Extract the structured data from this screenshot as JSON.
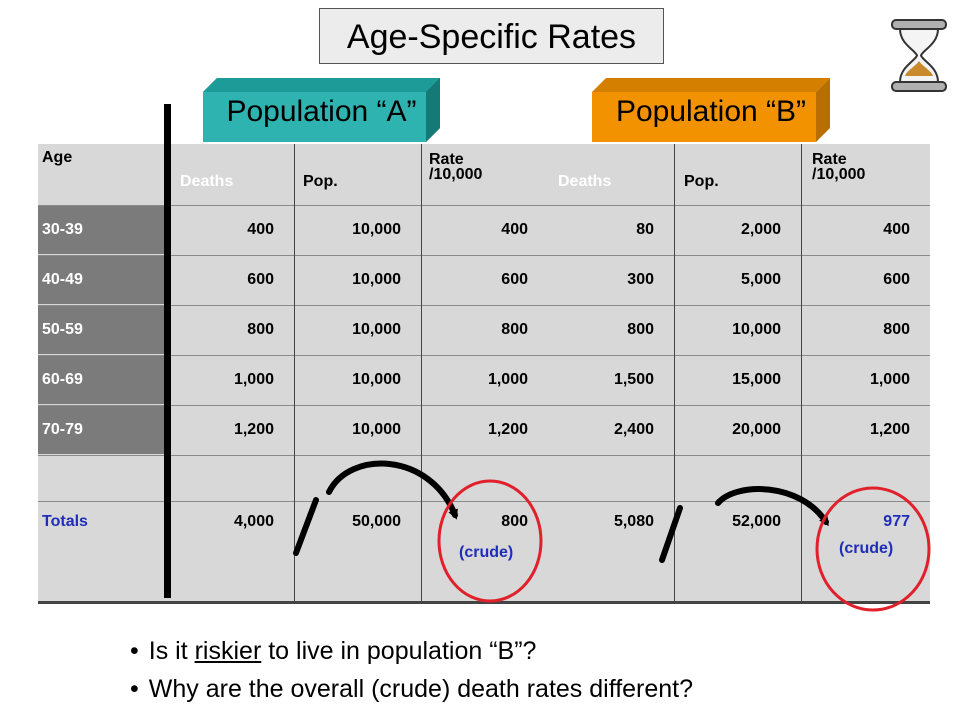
{
  "title": "Age-Specific Rates",
  "population_a": {
    "label": "Population “A”",
    "header": {
      "age": "Age",
      "deaths": "Deaths",
      "pop": "Pop.",
      "rate_line1": "Rate",
      "rate_line2": "/10,000"
    },
    "rows": [
      {
        "age": "30-39",
        "deaths": "400",
        "pop": "10,000",
        "rate": "400"
      },
      {
        "age": "40-49",
        "deaths": "600",
        "pop": "10,000",
        "rate": "600"
      },
      {
        "age": "50-59",
        "deaths": "800",
        "pop": "10,000",
        "rate": "800"
      },
      {
        "age": "60-69",
        "deaths": "1,000",
        "pop": "10,000",
        "rate": "1,000"
      },
      {
        "age": "70-79",
        "deaths": "1,200",
        "pop": "10,000",
        "rate": "1,200"
      }
    ],
    "totals": {
      "label": "Totals",
      "deaths": "4,000",
      "pop": "50,000",
      "rate": "800",
      "rate_note": "(crude)"
    }
  },
  "population_b": {
    "label": "Population “B”",
    "header": {
      "deaths": "Deaths",
      "pop": "Pop.",
      "rate_line1": "Rate",
      "rate_line2": "/10,000"
    },
    "rows": [
      {
        "deaths": "80",
        "pop": "2,000",
        "rate": "400"
      },
      {
        "deaths": "300",
        "pop": "5,000",
        "rate": "600"
      },
      {
        "deaths": "800",
        "pop": "10,000",
        "rate": "800"
      },
      {
        "deaths": "1,500",
        "pop": "15,000",
        "rate": "1,000"
      },
      {
        "deaths": "2,400",
        "pop": "20,000",
        "rate": "1,200"
      }
    ],
    "totals": {
      "deaths": "5,080",
      "pop": "52,000",
      "rate": "977",
      "rate_note": "(crude)"
    }
  },
  "questions": {
    "q1_before": "Is it ",
    "q1_underlined": "riskier",
    "q1_after": " to live in population “B”?",
    "q2": "Why are the overall (crude) death rates different?"
  },
  "colors": {
    "tab_a": "#2fb3b0",
    "tab_b": "#f39200",
    "circle": "#e0202a",
    "totals_text": "#1f2db8",
    "age_cell": "#7b7b7b",
    "table_bg": "#d8d8d8"
  },
  "icons": {
    "hourglass": "hourglass-icon"
  }
}
